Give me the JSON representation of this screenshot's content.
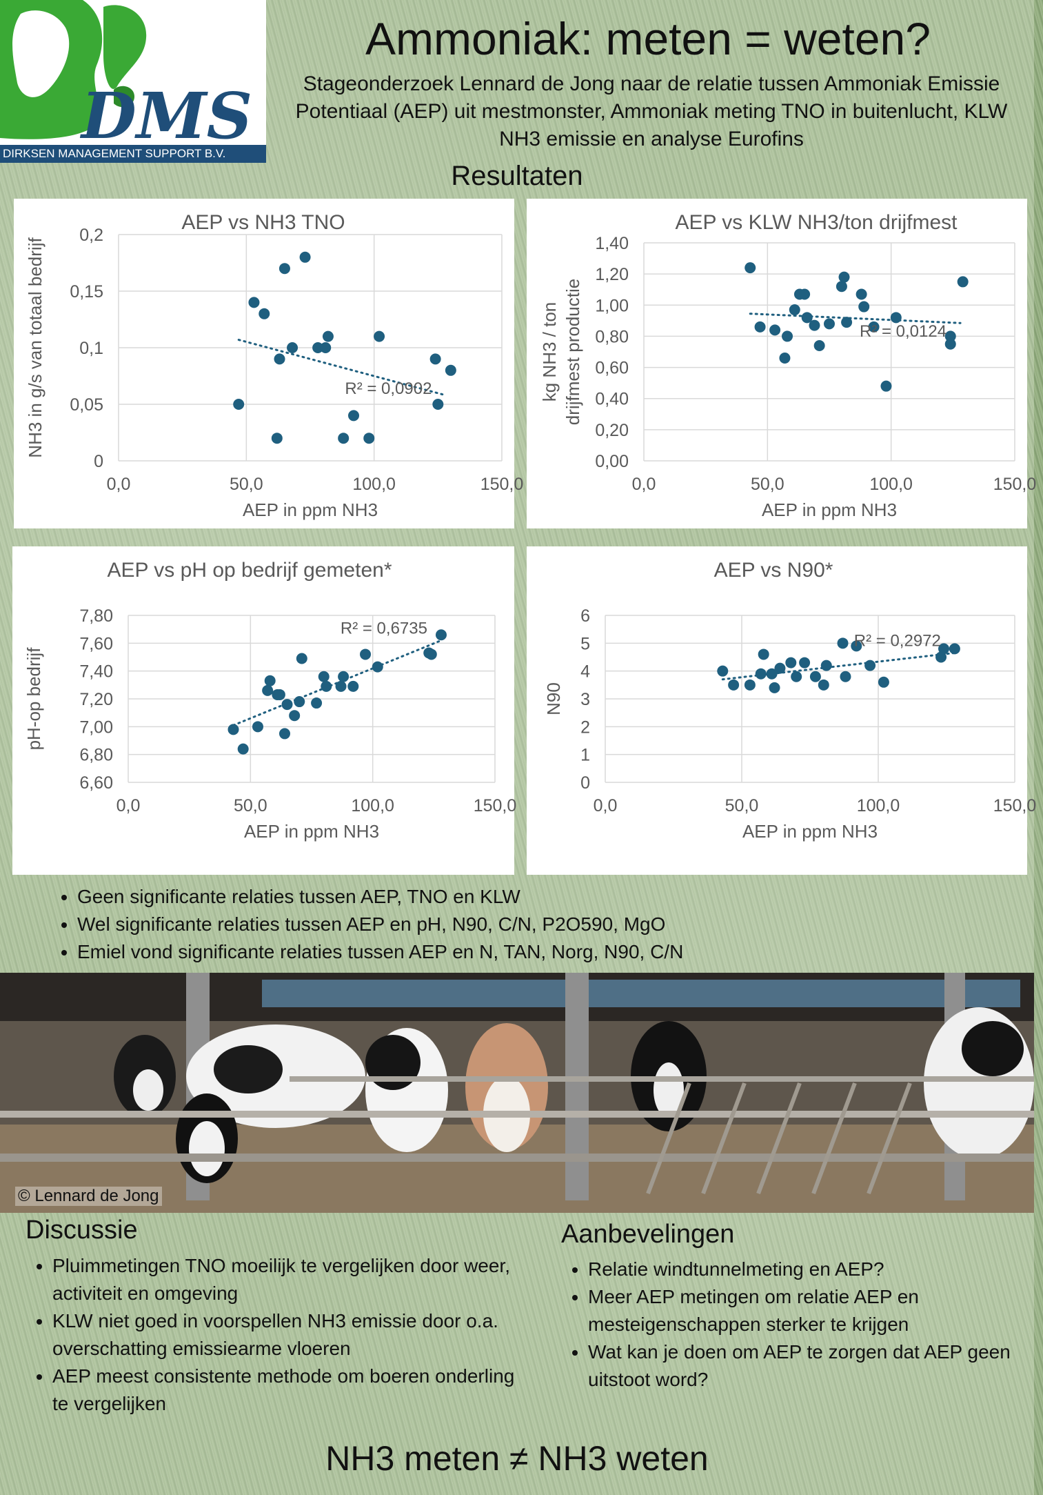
{
  "header": {
    "logo_mark": "DMS",
    "logo_text": "DIRKSEN MANAGEMENT SUPPORT B.V.",
    "title": "Ammoniak: meten = weten?",
    "subtitle": "Stageonderzoek Lennard de Jong naar de relatie tussen Ammoniak Emissie Potentiaal (AEP) uit mestmonster, Ammoniak meting TNO in buitenlucht, KLW NH3 emissie en analyse Eurofins",
    "section": "Resultaten"
  },
  "chart_data": [
    {
      "type": "scatter",
      "title": "AEP vs NH3 TNO",
      "xlabel": "AEP in ppm NH3",
      "ylabel": "NH3 in g/s van totaal bedrijf",
      "xlim": [
        0,
        150
      ],
      "ylim": [
        0,
        0.2
      ],
      "xticks": [
        "0,0",
        "50,0",
        "100,0",
        "150,0"
      ],
      "yticks": [
        "0",
        "0,05",
        "0,1",
        "0,15",
        "0,2"
      ],
      "grid": true,
      "trendline": {
        "x": [
          47,
          128
        ],
        "y": [
          0.107,
          0.058
        ],
        "label": "R² = 0,0902"
      },
      "x": [
        47,
        53,
        57,
        62,
        63,
        65,
        68,
        73,
        78,
        81,
        82,
        88,
        92,
        98,
        102,
        124,
        125,
        130
      ],
      "y": [
        0.05,
        0.14,
        0.13,
        0.02,
        0.09,
        0.17,
        0.1,
        0.18,
        0.1,
        0.1,
        0.11,
        0.02,
        0.04,
        0.02,
        0.11,
        0.09,
        0.05,
        0.08
      ]
    },
    {
      "type": "scatter",
      "title": "AEP vs KLW NH3/ton drijfmest",
      "xlabel": "AEP in ppm NH3",
      "ylabel": "kg NH3 / ton drijfmest productie",
      "xlim": [
        0,
        150
      ],
      "ylim": [
        0,
        1.4
      ],
      "xticks": [
        "0,0",
        "50,0",
        "100,0",
        "150,0"
      ],
      "yticks": [
        "0,00",
        "0,20",
        "0,40",
        "0,60",
        "0,80",
        "1,00",
        "1,20",
        "1,40"
      ],
      "grid": true,
      "trendline": {
        "x": [
          43,
          128
        ],
        "y": [
          0.945,
          0.885
        ],
        "label": "R² = 0,0124"
      },
      "x": [
        43,
        47,
        53,
        57,
        58,
        61,
        63,
        65,
        66,
        69,
        71,
        75,
        80,
        81,
        82,
        88,
        89,
        93,
        98,
        102,
        124,
        124,
        129
      ],
      "y": [
        1.24,
        0.86,
        0.84,
        0.66,
        0.8,
        0.97,
        1.07,
        1.07,
        0.92,
        0.87,
        0.74,
        0.88,
        1.12,
        1.18,
        0.89,
        1.07,
        0.99,
        0.86,
        0.48,
        0.92,
        0.8,
        0.75,
        1.15
      ]
    },
    {
      "type": "scatter",
      "title": "AEP vs pH op bedrijf gemeten*",
      "xlabel": "AEP in ppm NH3",
      "ylabel": "pH-op bedrijf",
      "xlim": [
        0,
        150
      ],
      "ylim": [
        6.6,
        7.8
      ],
      "xticks": [
        "0,0",
        "50,0",
        "100,0",
        "150,0"
      ],
      "yticks": [
        "6,60",
        "6,80",
        "7,00",
        "7,20",
        "7,40",
        "7,60",
        "7,80"
      ],
      "grid": true,
      "trendline": {
        "x": [
          43,
          128
        ],
        "y": [
          7.01,
          7.62
        ],
        "label": "R² = 0,6735"
      },
      "x": [
        43,
        47,
        53,
        57,
        58,
        61,
        62,
        64,
        65,
        68,
        70,
        71,
        77,
        80,
        81,
        87,
        88,
        92,
        97,
        102,
        123,
        124,
        128
      ],
      "y": [
        6.98,
        6.84,
        7.0,
        7.26,
        7.33,
        7.23,
        7.23,
        6.95,
        7.16,
        7.08,
        7.18,
        7.49,
        7.17,
        7.36,
        7.29,
        7.29,
        7.36,
        7.29,
        7.52,
        7.43,
        7.53,
        7.52,
        7.66
      ]
    },
    {
      "type": "scatter",
      "title": "AEP vs N90*",
      "xlabel": "AEP in ppm NH3",
      "ylabel": "N90",
      "xlim": [
        0,
        150
      ],
      "ylim": [
        0,
        6
      ],
      "xticks": [
        "0,0",
        "50,0",
        "100,0",
        "150,0"
      ],
      "yticks": [
        "0",
        "1",
        "2",
        "3",
        "4",
        "5",
        "6"
      ],
      "grid": true,
      "trendline": {
        "x": [
          43,
          128
        ],
        "y": [
          3.7,
          4.65
        ],
        "label": "R² = 0,2972"
      },
      "x": [
        43,
        47,
        53,
        57,
        58,
        61,
        62,
        64,
        68,
        70,
        73,
        77,
        80,
        81,
        87,
        88,
        92,
        97,
        102,
        123,
        124,
        128
      ],
      "y": [
        4.0,
        3.5,
        3.5,
        3.9,
        4.6,
        3.9,
        3.4,
        4.1,
        4.3,
        3.8,
        4.3,
        3.8,
        3.5,
        4.2,
        5.0,
        3.8,
        4.9,
        4.2,
        3.6,
        4.5,
        4.8,
        4.8
      ]
    }
  ],
  "results_bullets": [
    "Geen significante relaties tussen AEP, TNO en KLW",
    "Wel significante relaties tussen AEP en pH, N90, C/N, P2O590, MgO",
    "Emiel vond significante relaties tussen AEP en N, TAN, Norg, N90, C/N"
  ],
  "photo": {
    "credit": "© Lennard de Jong"
  },
  "discussie": {
    "heading": "Discussie",
    "items": [
      "Pluimmetingen TNO moeilijk te vergelijken door weer, activiteit en omgeving",
      "KLW niet goed in voorspellen NH3 emissie door o.a. overschatting emissiearme vloeren",
      "AEP meest consistente methode om boeren onderling te vergelijken"
    ]
  },
  "aanbevelingen": {
    "heading": "Aanbevelingen",
    "items": [
      "Relatie windtunnelmeting en AEP?",
      "Meer AEP metingen om relatie AEP en mesteigenschappen sterker te krijgen",
      "Wat kan je doen om AEP te zorgen dat AEP geen uitstoot word?"
    ]
  },
  "footer": "NH3 meten ≠ NH3 weten",
  "colors": {
    "marker": "#1f5f7f",
    "trend": "#1f5f7f",
    "grid": "#d9d9d9",
    "axis_text": "#595959",
    "logo_green": "#3aa935",
    "logo_blue": "#1f4e79"
  }
}
